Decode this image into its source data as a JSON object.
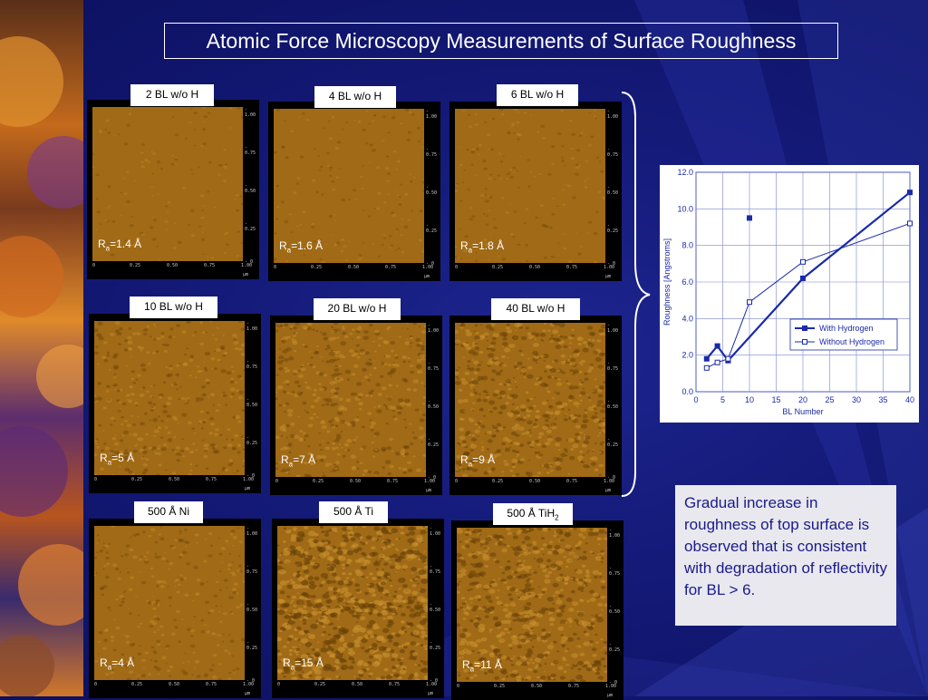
{
  "title": "Atomic Force Microscopy Measurements of Surface Roughness",
  "afm_scale": {
    "right_ticks": [
      "1.00",
      "0.75",
      "0.50",
      "0.25",
      "0"
    ],
    "bottom_ticks": [
      "0",
      "0.25",
      "0.50",
      "0.75",
      "1.00"
    ],
    "unit": "µm"
  },
  "panels": [
    {
      "label": "2 BL w/o H",
      "ra_prefix": "R",
      "ra_sub": "a",
      "ra_value": "=1.4 Å"
    },
    {
      "label": "4 BL w/o H",
      "ra_prefix": "R",
      "ra_sub": "a",
      "ra_value": "=1.6 Å"
    },
    {
      "label": "6 BL w/o H",
      "ra_prefix": "R",
      "ra_sub": "a",
      "ra_value": "=1.8 Å"
    },
    {
      "label": "10 BL w/o H",
      "ra_prefix": "R",
      "ra_sub": "a",
      "ra_value": "=5 Å"
    },
    {
      "label": "20 BL w/o H",
      "ra_prefix": "R",
      "ra_sub": "a",
      "ra_value": "=7 Å"
    },
    {
      "label": "40 BL w/o H",
      "ra_prefix": "R",
      "ra_sub": "a",
      "ra_value": "=9 Å"
    },
    {
      "label": "500 Å Ni",
      "ra_prefix": "R",
      "ra_sub": "a",
      "ra_value": "=4 Å"
    },
    {
      "label": "500 Å Ti",
      "ra_prefix": "R",
      "ra_sub": "a",
      "ra_value": "=15 Å"
    },
    {
      "label_main": "500 Å TiH",
      "label_sub": "2",
      "ra_prefix": "R",
      "ra_sub": "a",
      "ra_value": "=11 Å"
    }
  ],
  "chart_data": {
    "type": "line",
    "xlabel": "BL Number",
    "ylabel": "Roughness [Angstroms]",
    "xlim": [
      0,
      40
    ],
    "ylim": [
      0,
      12
    ],
    "xticks": [
      0,
      5,
      10,
      15,
      20,
      25,
      30,
      35,
      40
    ],
    "yticks": [
      0.0,
      2.0,
      4.0,
      6.0,
      8.0,
      10.0,
      12.0
    ],
    "ytick_labels": [
      "0.0",
      "2.0",
      "4.0",
      "6.0",
      "8.0",
      "10.0",
      "12.0"
    ],
    "grid": true,
    "legend_position": "lower-right",
    "series": [
      {
        "name": "With Hydrogen",
        "marker": "filled-square",
        "x": [
          2,
          4,
          6,
          20,
          40
        ],
        "y": [
          1.8,
          2.5,
          1.7,
          6.2,
          10.9
        ],
        "color": "#1a2aa8"
      },
      {
        "name": "With Hydrogen outlier",
        "marker": "filled-square",
        "x": [
          10
        ],
        "y": [
          9.5
        ],
        "color": "#1a2aa8"
      },
      {
        "name": "Without Hydrogen",
        "marker": "open-square",
        "x": [
          2,
          4,
          6,
          10,
          20,
          40
        ],
        "y": [
          1.3,
          1.6,
          1.8,
          4.9,
          7.1,
          9.2
        ],
        "color": "#1a2aa8"
      }
    ]
  },
  "note": {
    "text": "Gradual increase in roughness of top surface is observed that is consistent with degradation of reflectivity for BL > 6."
  },
  "colors": {
    "background": "#141a78",
    "afm_surface": "#a06a16",
    "chart_line": "#1a2aa8",
    "note_text": "#1a1a8c"
  }
}
